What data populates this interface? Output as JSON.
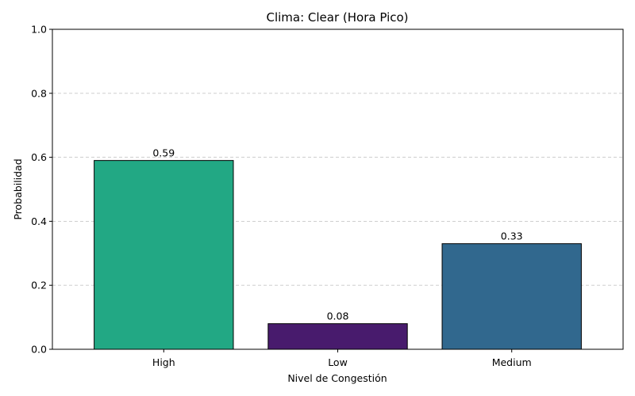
{
  "chart_data": {
    "type": "bar",
    "title": "Clima: Clear (Hora Pico)",
    "xlabel": "Nivel de Congestión",
    "ylabel": "Probabilidad",
    "categories": [
      "High",
      "Low",
      "Medium"
    ],
    "values": [
      0.59,
      0.08,
      0.33
    ],
    "value_labels": [
      "0.59",
      "0.08",
      "0.33"
    ],
    "colors": [
      "#22a884",
      "#481b6d",
      "#31688e"
    ],
    "ylim": [
      0,
      1.0
    ],
    "yticks": [
      0.0,
      0.2,
      0.4,
      0.6,
      0.8,
      1.0
    ],
    "ytick_labels": [
      "0.0",
      "0.2",
      "0.4",
      "0.6",
      "0.8",
      "1.0"
    ],
    "grid": "y-dashed",
    "legend": "none"
  }
}
